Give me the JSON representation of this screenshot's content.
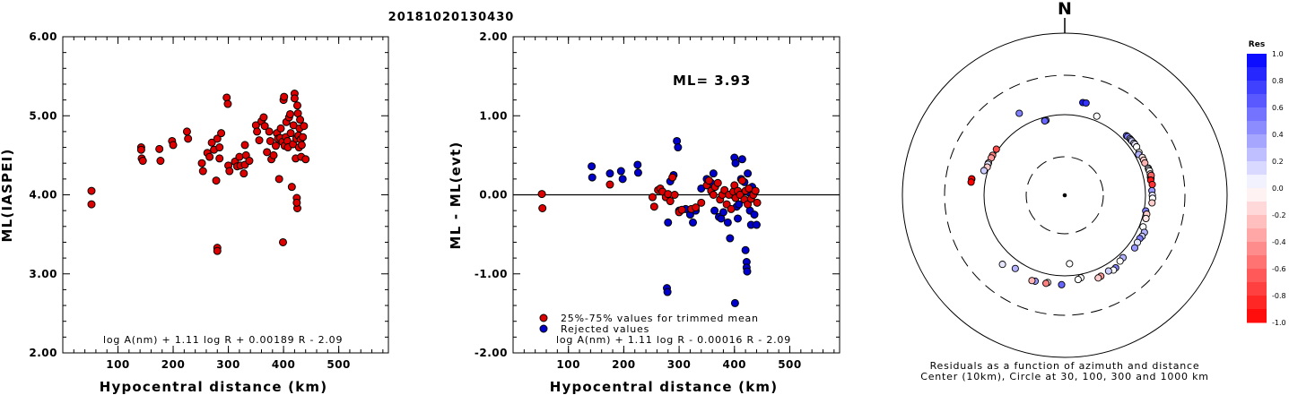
{
  "title": "20181020130430",
  "colors": {
    "accepted": "#dd0000",
    "rejected": "#0000cc",
    "axis": "#000000"
  },
  "chart_data": [
    {
      "type": "scatter",
      "name": "ml-vs-distance",
      "xlabel": "Hypocentral distance (km)",
      "ylabel": "ML(IASPEI)",
      "xlim": [
        0,
        590
      ],
      "ylim": [
        2.0,
        6.0
      ],
      "xticks": [
        "100",
        "200",
        "300",
        "400",
        "500"
      ],
      "yticks": [
        "2.00",
        "3.00",
        "4.00",
        "5.00",
        "6.00"
      ],
      "formula": "log A(nm) + 1.11 log R + 0.00189 R - 2.09",
      "points": [
        [
          52,
          4.05
        ],
        [
          52,
          3.88
        ],
        [
          142,
          4.6
        ],
        [
          142,
          4.57
        ],
        [
          143,
          4.46
        ],
        [
          145,
          4.43
        ],
        [
          175,
          4.58
        ],
        [
          177,
          4.43
        ],
        [
          198,
          4.68
        ],
        [
          200,
          4.63
        ],
        [
          225,
          4.8
        ],
        [
          227,
          4.71
        ],
        [
          252,
          4.4
        ],
        [
          254,
          4.3
        ],
        [
          262,
          4.53
        ],
        [
          266,
          4.48
        ],
        [
          270,
          4.66
        ],
        [
          274,
          4.57
        ],
        [
          278,
          4.18
        ],
        [
          280,
          4.71
        ],
        [
          284,
          4.6
        ],
        [
          284,
          4.46
        ],
        [
          287,
          4.78
        ],
        [
          280,
          3.33
        ],
        [
          280,
          3.29
        ],
        [
          297,
          5.23
        ],
        [
          299,
          5.15
        ],
        [
          300,
          4.37
        ],
        [
          302,
          4.3
        ],
        [
          312,
          4.42
        ],
        [
          316,
          4.36
        ],
        [
          320,
          4.48
        ],
        [
          322,
          4.37
        ],
        [
          328,
          4.27
        ],
        [
          330,
          4.38
        ],
        [
          330,
          4.63
        ],
        [
          332,
          4.5
        ],
        [
          338,
          4.43
        ],
        [
          350,
          4.88
        ],
        [
          352,
          4.8
        ],
        [
          356,
          4.69
        ],
        [
          360,
          4.93
        ],
        [
          364,
          4.98
        ],
        [
          366,
          4.87
        ],
        [
          370,
          4.54
        ],
        [
          374,
          4.8
        ],
        [
          376,
          4.68
        ],
        [
          378,
          4.45
        ],
        [
          382,
          4.5
        ],
        [
          386,
          4.62
        ],
        [
          388,
          4.78
        ],
        [
          390,
          4.71
        ],
        [
          392,
          4.2
        ],
        [
          394,
          4.72
        ],
        [
          395,
          4.84
        ],
        [
          398,
          4.67
        ],
        [
          399,
          3.4
        ],
        [
          400,
          5.2
        ],
        [
          401,
          5.24
        ],
        [
          402,
          4.62
        ],
        [
          404,
          4.73
        ],
        [
          405,
          4.92
        ],
        [
          407,
          4.68
        ],
        [
          408,
          4.6
        ],
        [
          410,
          4.98
        ],
        [
          412,
          5.02
        ],
        [
          413,
          4.78
        ],
        [
          415,
          4.1
        ],
        [
          417,
          4.64
        ],
        [
          418,
          4.88
        ],
        [
          420,
          5.28
        ],
        [
          420,
          5.22
        ],
        [
          422,
          4.46
        ],
        [
          423,
          4.71
        ],
        [
          424,
          3.96
        ],
        [
          425,
          3.83
        ],
        [
          424,
          3.9
        ],
        [
          425,
          5.13
        ],
        [
          426,
          5.03
        ],
        [
          427,
          4.75
        ],
        [
          428,
          4.6
        ],
        [
          429,
          4.84
        ],
        [
          430,
          4.95
        ],
        [
          431,
          4.7
        ],
        [
          432,
          4.48
        ],
        [
          433,
          4.63
        ],
        [
          435,
          4.73
        ],
        [
          437,
          4.87
        ],
        [
          440,
          4.45
        ]
      ]
    },
    {
      "type": "scatter",
      "name": "residual-vs-distance",
      "xlabel": "Hypocentral distance (km)",
      "ylabel": "ML - ML(evt)",
      "xlim": [
        0,
        590
      ],
      "ylim": [
        -2.0,
        2.0
      ],
      "xticks": [
        "100",
        "200",
        "300",
        "400",
        "500"
      ],
      "yticks": [
        "-2.00",
        "-1.00",
        "0.00",
        "1.00",
        "2.00"
      ],
      "ml_label": "ML= 3.93",
      "formula": "log A(nm) + 1.11 log R - 0.00016 R - 2.09",
      "legend": [
        "25%-75% values for trimmed mean",
        "Rejected values"
      ],
      "accepted": [
        [
          52,
          0.01
        ],
        [
          53,
          -0.17
        ],
        [
          175,
          0.13
        ],
        [
          252,
          -0.03
        ],
        [
          255,
          -0.15
        ],
        [
          262,
          0.06
        ],
        [
          266,
          0.08
        ],
        [
          270,
          0.04
        ],
        [
          276,
          -0.03
        ],
        [
          280,
          0.01
        ],
        [
          284,
          -0.08
        ],
        [
          288,
          0.22
        ],
        [
          292,
          0.0
        ],
        [
          300,
          -0.22
        ],
        [
          305,
          -0.19
        ],
        [
          322,
          -0.18
        ],
        [
          330,
          -0.16
        ],
        [
          340,
          -0.1
        ],
        [
          350,
          0.12
        ],
        [
          354,
          0.18
        ],
        [
          358,
          0.05
        ],
        [
          362,
          0.0
        ],
        [
          365,
          0.1
        ],
        [
          370,
          0.15
        ],
        [
          374,
          -0.06
        ],
        [
          378,
          0.0
        ],
        [
          382,
          0.06
        ],
        [
          386,
          -0.12
        ],
        [
          390,
          0.0
        ],
        [
          394,
          -0.18
        ],
        [
          398,
          0.04
        ],
        [
          400,
          0.12
        ],
        [
          402,
          -0.04
        ],
        [
          406,
          0.05
        ],
        [
          410,
          0.0
        ],
        [
          414,
          0.18
        ],
        [
          418,
          -0.06
        ],
        [
          420,
          0.05
        ],
        [
          424,
          -0.12
        ],
        [
          426,
          0.08
        ],
        [
          430,
          -0.05
        ],
        [
          434,
          0.0
        ],
        [
          438,
          0.05
        ],
        [
          441,
          -0.1
        ]
      ],
      "rejected": [
        [
          142,
          0.36
        ],
        [
          143,
          0.22
        ],
        [
          175,
          0.27
        ],
        [
          195,
          0.3
        ],
        [
          198,
          0.2
        ],
        [
          225,
          0.38
        ],
        [
          226,
          0.28
        ],
        [
          278,
          -1.18
        ],
        [
          279,
          -1.23
        ],
        [
          280,
          -0.35
        ],
        [
          284,
          0.17
        ],
        [
          290,
          0.25
        ],
        [
          296,
          0.68
        ],
        [
          298,
          0.6
        ],
        [
          300,
          -0.2
        ],
        [
          312,
          -0.18
        ],
        [
          320,
          -0.25
        ],
        [
          325,
          -0.35
        ],
        [
          330,
          -0.2
        ],
        [
          340,
          0.08
        ],
        [
          350,
          0.2
        ],
        [
          358,
          0.15
        ],
        [
          362,
          0.27
        ],
        [
          364,
          -0.2
        ],
        [
          372,
          -0.28
        ],
        [
          376,
          -0.3
        ],
        [
          380,
          -0.22
        ],
        [
          388,
          -0.35
        ],
        [
          392,
          -0.55
        ],
        [
          396,
          0.0
        ],
        [
          400,
          0.47
        ],
        [
          401,
          -1.37
        ],
        [
          402,
          0.4
        ],
        [
          404,
          -0.15
        ],
        [
          406,
          -0.3
        ],
        [
          408,
          -0.12
        ],
        [
          412,
          0.2
        ],
        [
          414,
          0.45
        ],
        [
          418,
          0.16
        ],
        [
          420,
          -0.7
        ],
        [
          422,
          -0.85
        ],
        [
          422,
          -0.92
        ],
        [
          423,
          -0.97
        ],
        [
          424,
          0.27
        ],
        [
          426,
          0.03
        ],
        [
          428,
          -0.2
        ],
        [
          430,
          -0.38
        ],
        [
          432,
          0.1
        ],
        [
          436,
          -0.25
        ],
        [
          440,
          -0.38
        ]
      ]
    },
    {
      "type": "scatter",
      "name": "azimuth-residual-map",
      "polar": true,
      "north_label": "N",
      "caption": [
        "Residuals as a function of azimuth and distance",
        "Center (10km), Circle at 30, 100, 300 and 1000 km"
      ],
      "colorbar_title": "Res",
      "colorbar_ticks": [
        "1.0",
        "0.8",
        "0.6",
        "0.4",
        "0.2",
        "0.0",
        "-0.2",
        "-0.4",
        "-0.6",
        "-0.8",
        "-1.0"
      ],
      "stations": [
        [
          -29,
          144,
          0.5
        ],
        [
          11,
          147,
          0.9
        ],
        [
          13,
          148,
          0.8
        ],
        [
          22,
          114,
          0.0
        ],
        [
          -15,
          91,
          0.7
        ],
        [
          -14,
          91,
          0.5
        ],
        [
          -15,
          90,
          0.6
        ],
        [
          -56,
          105,
          -0.7
        ],
        [
          -61,
          105,
          -0.5
        ],
        [
          -63,
          105,
          -0.4
        ],
        [
          -67,
          106,
          -0.1
        ],
        [
          -68,
          106,
          0.1
        ],
        [
          -70,
          105,
          -0.2
        ],
        [
          -73,
          111,
          0.2
        ],
        [
          -80,
          146,
          -0.9
        ],
        [
          -80,
          147,
          -1.0
        ],
        [
          -82,
          147,
          -1.0
        ],
        [
          46,
          115,
          0.6
        ],
        [
          47,
          116,
          0.5
        ],
        [
          49,
          117,
          0.3
        ],
        [
          50,
          117,
          0.3
        ],
        [
          51,
          117,
          0.2
        ],
        [
          53,
          118,
          0.1
        ],
        [
          54,
          118,
          0.1
        ],
        [
          56,
          118,
          0.0
        ],
        [
          60,
          115,
          0.0
        ],
        [
          61,
          111,
          0.3
        ],
        [
          64,
          117,
          -0.1
        ],
        [
          66,
          117,
          -0.2
        ],
        [
          68,
          117,
          -0.3
        ],
        [
          72,
          122,
          0.1
        ],
        [
          73,
          122,
          0.0
        ],
        [
          74,
          123,
          0.0
        ],
        [
          76,
          123,
          -0.1
        ],
        [
          78,
          121,
          -0.2
        ],
        [
          79,
          122,
          -0.1
        ],
        [
          77,
          125,
          -0.6
        ],
        [
          80,
          120,
          -0.9
        ],
        [
          83,
          123,
          -0.8
        ],
        [
          87,
          120,
          0.4
        ],
        [
          90,
          121,
          0.1
        ],
        [
          92,
          122,
          0.0
        ],
        [
          95,
          121,
          -0.2
        ],
        [
          101,
          105,
          0.5
        ],
        [
          103,
          110,
          -0.2
        ],
        [
          106,
          111,
          -0.1
        ],
        [
          112,
          111,
          0.0
        ],
        [
          115,
          122,
          0.3
        ],
        [
          118,
          121,
          0.2
        ],
        [
          120,
          118,
          0.5
        ],
        [
          123,
          118,
          0.1
        ],
        [
          127,
          121,
          0.4
        ],
        [
          137,
          114,
          0.3
        ],
        [
          140,
          116,
          0.0
        ],
        [
          145,
          125,
          0.5
        ],
        [
          147,
          127,
          0.0
        ],
        [
          150,
          121,
          0.2
        ],
        [
          156,
          125,
          -0.4
        ],
        [
          158,
          127,
          -0.2
        ],
        [
          169,
          110,
          0.0
        ],
        [
          171,
          114,
          0.0
        ],
        [
          182,
          128,
          0.6
        ],
        [
          176,
          71,
          0.0
        ],
        [
          199,
          133,
          0.4
        ],
        [
          191,
          126,
          0.0
        ],
        [
          192,
          130,
          -0.5
        ],
        [
          201,
          135,
          -0.3
        ],
        [
          214,
          124,
          0.3
        ],
        [
          222,
          141,
          0.1
        ]
      ]
    }
  ]
}
